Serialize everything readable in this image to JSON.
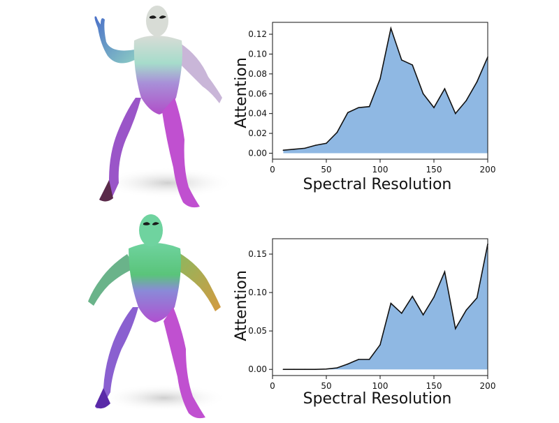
{
  "charts_styling": {
    "fill": "#8fb8e3",
    "stroke": "#111111"
  },
  "figure_colors": {
    "top": {
      "head": "#d8dcd6",
      "arm_left": "#5a7fc8",
      "torso": "#9fd8c6",
      "arm_right": "#c4b0d4",
      "legs": "#b04fc8",
      "feet": "#5a2a4a"
    },
    "bottom": {
      "head": "#6fd39f",
      "arm_left": "#6ab38a",
      "torso": "#5ac47a",
      "arm_right": "#c8a040",
      "legs": "#b050d0",
      "feet": "#5a2aa8"
    }
  },
  "chart_data": [
    {
      "type": "area",
      "xlabel": "Spectral Resolution",
      "ylabel": "Attention",
      "xlim": [
        0,
        200
      ],
      "ylim": [
        -0.006,
        0.132
      ],
      "xticks": [
        0,
        50,
        100,
        150,
        200
      ],
      "xtick_labels": [
        "0",
        "50",
        "100",
        "150",
        "200"
      ],
      "yticks": [
        0.0,
        0.02,
        0.04,
        0.06,
        0.08,
        0.1,
        0.12
      ],
      "ytick_labels": [
        "0.00",
        "0.02",
        "0.04",
        "0.06",
        "0.08",
        "0.10",
        "0.12"
      ],
      "x": [
        10,
        20,
        30,
        40,
        50,
        60,
        70,
        80,
        90,
        100,
        110,
        120,
        130,
        140,
        150,
        160,
        170,
        180,
        190,
        200
      ],
      "values": [
        0.003,
        0.004,
        0.005,
        0.008,
        0.01,
        0.021,
        0.041,
        0.046,
        0.047,
        0.075,
        0.126,
        0.094,
        0.089,
        0.06,
        0.046,
        0.065,
        0.04,
        0.053,
        0.072,
        0.097
      ],
      "grid": false
    },
    {
      "type": "area",
      "xlabel": "Spectral Resolution",
      "ylabel": "Attention",
      "xlim": [
        0,
        200
      ],
      "ylim": [
        -0.008,
        0.17
      ],
      "xticks": [
        0,
        50,
        100,
        150,
        200
      ],
      "xtick_labels": [
        "0",
        "50",
        "100",
        "150",
        "200"
      ],
      "yticks": [
        0.0,
        0.05,
        0.1,
        0.15
      ],
      "ytick_labels": [
        "0.00",
        "0.05",
        "0.10",
        "0.15"
      ],
      "x": [
        10,
        20,
        30,
        40,
        50,
        60,
        70,
        80,
        90,
        100,
        110,
        120,
        130,
        140,
        150,
        160,
        170,
        180,
        190,
        200
      ],
      "values": [
        0.0,
        0.0,
        0.0,
        0.0,
        0.0005,
        0.002,
        0.007,
        0.013,
        0.013,
        0.032,
        0.086,
        0.073,
        0.095,
        0.071,
        0.094,
        0.127,
        0.053,
        0.077,
        0.093,
        0.163
      ],
      "grid": false
    }
  ]
}
